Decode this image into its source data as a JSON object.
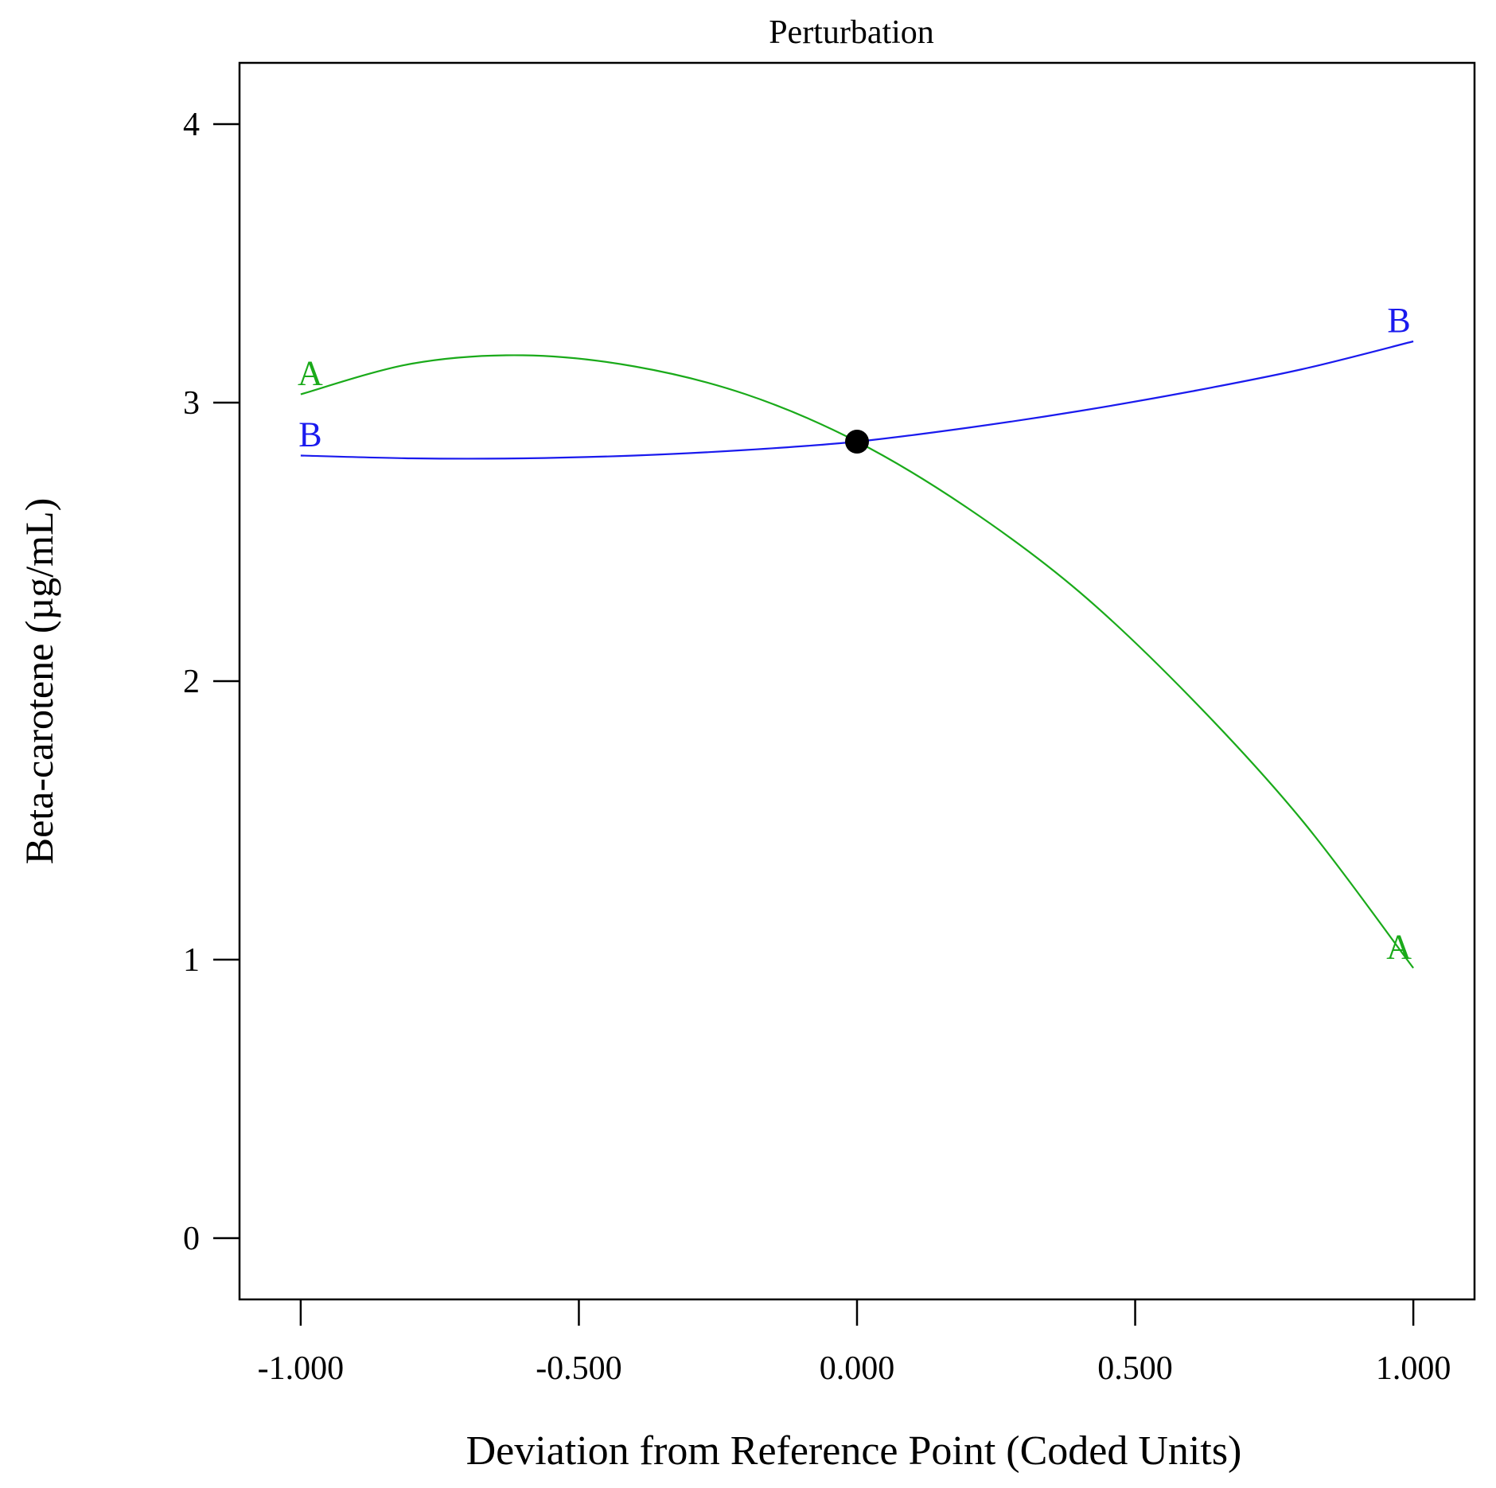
{
  "chart_data": {
    "type": "line",
    "title": "Perturbation",
    "xlabel": "Deviation from Reference Point (Coded Units)",
    "ylabel": "Beta-carotene (µg/mL)",
    "xlim": [
      -1.11,
      1.11
    ],
    "ylim": [
      -0.22,
      4.22
    ],
    "xticks": [
      -1.0,
      -0.5,
      0.0,
      0.5,
      1.0
    ],
    "xtick_labels": [
      "-1.000",
      "-0.500",
      "0.000",
      "0.500",
      "1.000"
    ],
    "yticks": [
      0,
      1,
      2,
      3,
      4
    ],
    "ytick_labels": [
      "0",
      "1",
      "2",
      "3",
      "4"
    ],
    "grid": false,
    "series": [
      {
        "name": "A",
        "color": "#1aaa1a",
        "x": [
          -1.0,
          -0.8,
          -0.6,
          -0.4,
          -0.2,
          0.0,
          0.2,
          0.4,
          0.6,
          0.8,
          1.0
        ],
        "y": [
          3.03,
          3.14,
          3.17,
          3.13,
          3.03,
          2.86,
          2.62,
          2.32,
          1.94,
          1.5,
          0.97
        ]
      },
      {
        "name": "B",
        "color": "#1a1aee",
        "x": [
          -1.0,
          -0.8,
          -0.6,
          -0.4,
          -0.2,
          0.0,
          0.2,
          0.4,
          0.6,
          0.8,
          1.0
        ],
        "y": [
          2.81,
          2.8,
          2.8,
          2.81,
          2.83,
          2.86,
          2.91,
          2.97,
          3.04,
          3.12,
          3.22
        ]
      }
    ],
    "reference_point": {
      "x": 0.0,
      "y": 2.86
    }
  }
}
